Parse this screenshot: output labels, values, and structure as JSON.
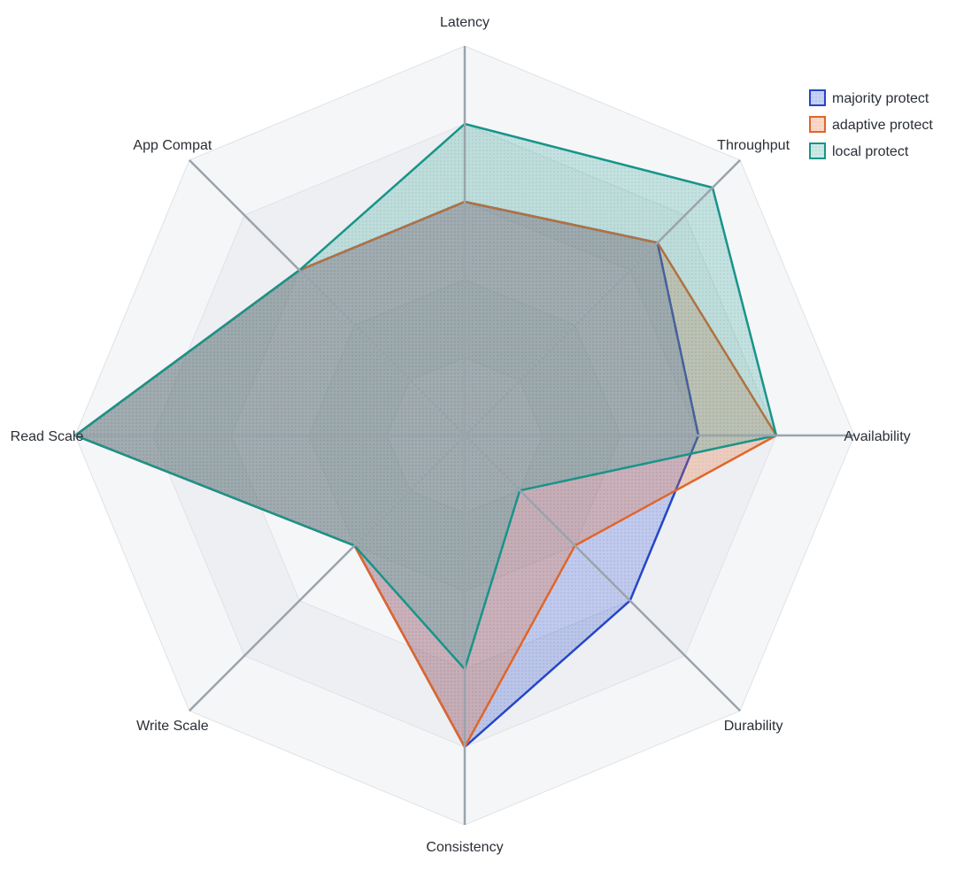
{
  "chart_data": {
    "type": "radar",
    "axes": [
      "Latency",
      "Throughput",
      "Availability",
      "Durability",
      "Consistency",
      "Write Scale",
      "Read Scale",
      "App Compat"
    ],
    "range": [
      0,
      5
    ],
    "grid": true,
    "legend_position": "top-right",
    "series": [
      {
        "name": "majority protect",
        "values": [
          3,
          3.5,
          3,
          3,
          4,
          2,
          5,
          3
        ],
        "color": "#2446c8"
      },
      {
        "name": "adaptive protect",
        "values": [
          3,
          3.5,
          4,
          2,
          4,
          2,
          5,
          3
        ],
        "color": "#e0662a"
      },
      {
        "name": "local protect",
        "values": [
          4,
          4.5,
          4,
          1,
          3,
          2,
          5,
          3
        ],
        "color": "#189488"
      }
    ]
  }
}
